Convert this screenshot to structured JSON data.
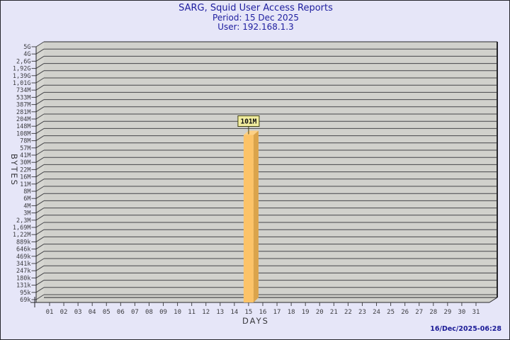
{
  "header": {
    "title": "SARG, Squid User Access Reports",
    "period": "Period: 15 Dec 2025",
    "user": "User: 192.168.1.3"
  },
  "footer": {
    "generated_at": "16/Dec/2025-06:28"
  },
  "chart_data": {
    "type": "bar",
    "title": "SARG, Squid User Access Reports",
    "subtitle_lines": [
      "Period: 15 Dec 2025",
      "User: 192.168.1.3"
    ],
    "xlabel": "DAYS",
    "ylabel": "BYTES",
    "x_categories": [
      "01",
      "02",
      "03",
      "04",
      "05",
      "06",
      "07",
      "08",
      "09",
      "10",
      "11",
      "12",
      "13",
      "14",
      "15",
      "16",
      "17",
      "18",
      "19",
      "20",
      "21",
      "22",
      "23",
      "24",
      "25",
      "26",
      "27",
      "28",
      "29",
      "30",
      "31"
    ],
    "y_tick_labels": [
      "5G",
      "4G",
      "2,6G",
      "1,92G",
      "1,39G",
      "1,01G",
      "734M",
      "533M",
      "387M",
      "281M",
      "204M",
      "148M",
      "108M",
      "78M",
      "57M",
      "41M",
      "30M",
      "22M",
      "16M",
      "11M",
      "8M",
      "6M",
      "4M",
      "3M",
      "2,3M",
      "1,69M",
      "1,22M",
      "889k",
      "646k",
      "469k",
      "341k",
      "247k",
      "180k",
      "131k",
      "95k",
      "69k"
    ],
    "y_scale": "logarithmic-descending",
    "grid": true,
    "legend": null,
    "bars": [
      {
        "day": "15",
        "label": "101M",
        "value_bytes": 101000000
      }
    ],
    "colors": {
      "page_bg": "#e6e6f8",
      "plot_bg": "#d1d1cc",
      "wall_bg": "#d6d6d1",
      "grid_line": "#46464a",
      "plot_edge": "#26262a",
      "bar_front": "#fcc368",
      "bar_side": "#dba44b",
      "bar_top": "#fdd084",
      "bar_label_bg": "#f1ed9e",
      "bar_label_border": "#3f3f12",
      "title_text": "#2020a0",
      "timestamp_text": "#1a1a96",
      "tick_text": "#3c3c40"
    }
  }
}
